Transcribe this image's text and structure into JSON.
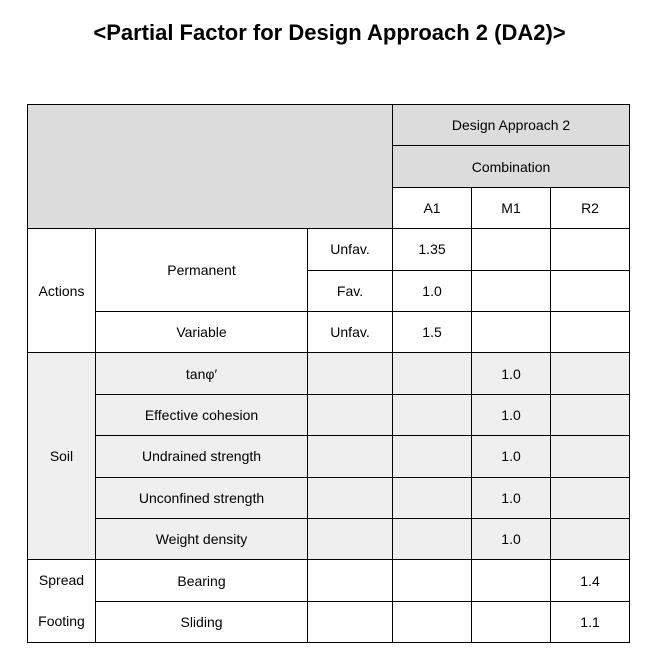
{
  "title": "<Partial Factor for Design Approach 2 (DA2)>",
  "table": {
    "header": {
      "approach": "Design Approach 2",
      "combination": "Combination",
      "sets": [
        "A1",
        "M1",
        "R2"
      ]
    },
    "actions": {
      "label": "Actions",
      "permanent": {
        "label": "Permanent",
        "unfav": {
          "condition": "Unfav.",
          "A1": "1.35"
        },
        "fav": {
          "condition": "Fav.",
          "A1": "1.0"
        }
      },
      "variable": {
        "label": "Variable",
        "condition": "Unfav.",
        "A1": "1.5"
      }
    },
    "soil": {
      "label": "Soil",
      "rows": [
        {
          "item": "tanφ′",
          "M1": "1.0"
        },
        {
          "item": "Effective cohesion",
          "M1": "1.0"
        },
        {
          "item": "Undrained strength",
          "M1": "1.0"
        },
        {
          "item": "Unconfined strength",
          "M1": "1.0"
        },
        {
          "item": "Weight density",
          "M1": "1.0"
        }
      ]
    },
    "spread_footing": {
      "label": "Spread Footing",
      "rows": [
        {
          "item": "Bearing",
          "R2": "1.4"
        },
        {
          "item": "Sliding",
          "R2": "1.1"
        }
      ]
    }
  }
}
